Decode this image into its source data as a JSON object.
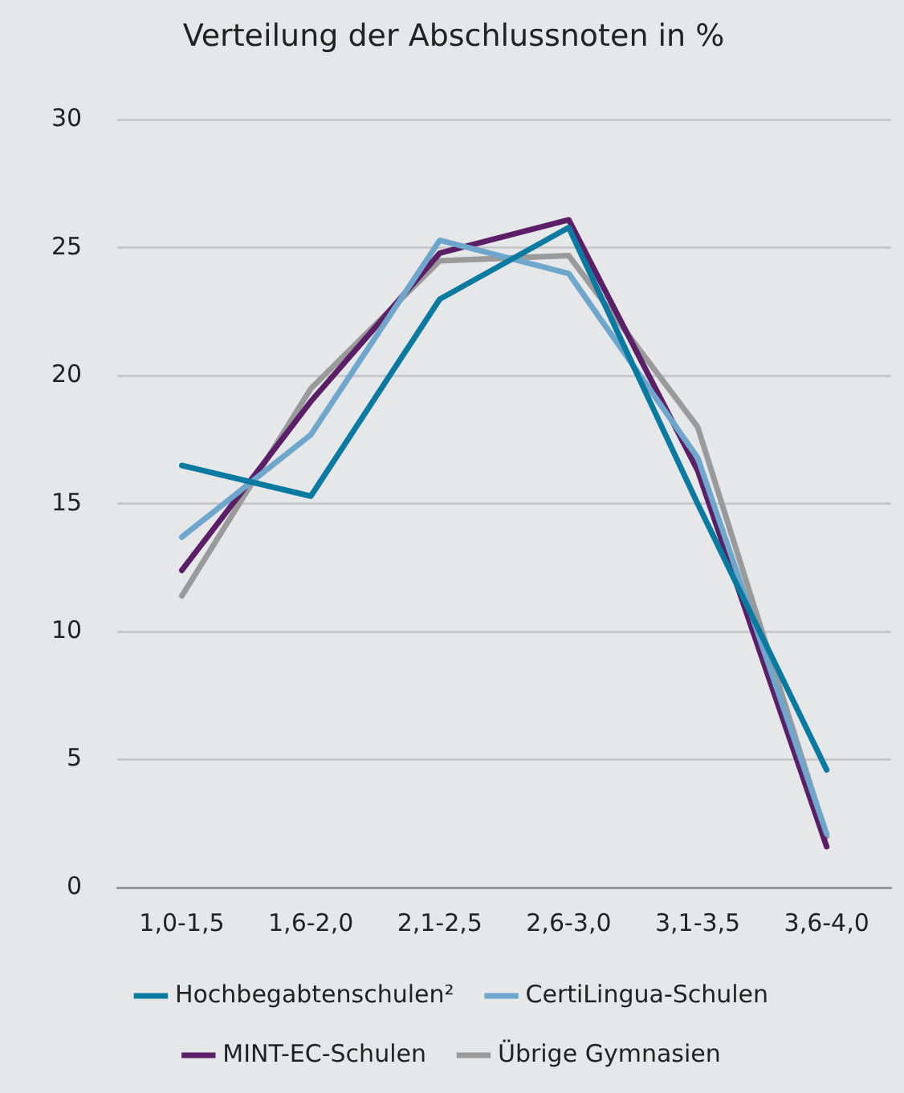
{
  "chart_data": {
    "type": "line",
    "title": "Verteilung der Abschlussnoten in %",
    "categories": [
      "1,0-1,5",
      "1,6-2,0",
      "2,1-2,5",
      "2,6-3,0",
      "3,1-3,5",
      "3,6-4,0"
    ],
    "series": [
      {
        "name": "Hochbegabtenschulen²",
        "color": "#0a7aa0",
        "values": [
          16.5,
          15.3,
          23.0,
          25.8,
          15.0,
          4.6
        ]
      },
      {
        "name": "CertiLingua-Schulen",
        "color": "#6ea6cc",
        "values": [
          13.7,
          17.7,
          25.3,
          24.0,
          16.8,
          2.1
        ]
      },
      {
        "name": "MINT-EC-Schulen",
        "color": "#5a1f66",
        "values": [
          12.4,
          19.0,
          24.8,
          26.1,
          16.3,
          1.6
        ]
      },
      {
        "name": "Übrige Gymnasien",
        "color": "#9a9a9a",
        "values": [
          11.4,
          19.5,
          24.5,
          24.7,
          18.0,
          2.0
        ]
      }
    ],
    "ylim": [
      0,
      30
    ],
    "yticks": [
      0,
      5,
      10,
      15,
      20,
      25,
      30
    ],
    "grid": "y",
    "legend": "bottom",
    "marker": "none",
    "line_style": "solid"
  }
}
